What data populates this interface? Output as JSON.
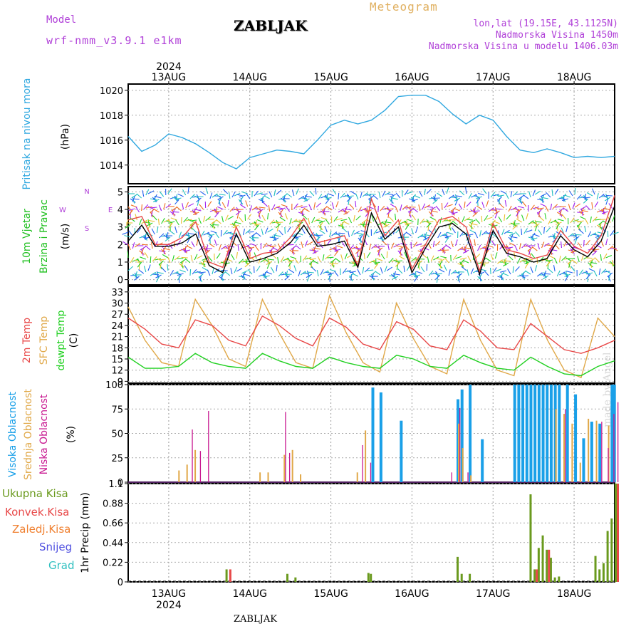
{
  "header": {
    "model_label": "Model",
    "model_name": "wrf-nmm_v3.9.1 e1km",
    "station": "ZABLJAK",
    "chart_kind": "Meteogram",
    "coords": "lon,lat (19.15E, 43.1125N)",
    "altitude": "Nadmorska Visina 1450m",
    "model_altitude": "Nadmorska Visina u modelu 1406.03m",
    "footer_station": "ZABLJAK",
    "watermark": "made by Angel"
  },
  "colors": {
    "pressure": "#30a8e0",
    "temp2m": "#e84848",
    "sfc": "#e0a848",
    "dewpt": "#20d020",
    "high_cloud": "#1aa0e8",
    "mid_cloud": "#e0a848",
    "low_cloud": "#c81890",
    "total_precip": "#6a9a1e",
    "conv_precip": "#e84848",
    "frozen_precip": "#f08030",
    "snow": "#5050e0",
    "grad": "#30c0c0",
    "wind_speed": "#000000",
    "wind_gust": "#e84848"
  },
  "time_axis": {
    "year": "2024",
    "days": [
      "13AUG",
      "14AUG",
      "15AUG",
      "16AUG",
      "17AUG",
      "18AUG"
    ]
  },
  "left_labels": {
    "pressure": [
      "Pritisak na nivou mora",
      "(hPa)"
    ],
    "wind": [
      "10m Vjetar",
      "Brzina i Pravac",
      "(m/s)"
    ],
    "compass": [
      "N",
      "E",
      "W",
      "S"
    ],
    "temp": [
      "2m Temp",
      "SFC Temp",
      "dewpt Temp",
      "(C)"
    ],
    "cloud": [
      "Visoka Oblacnost",
      "Srednja Oblacnost",
      "Niska Oblacnost",
      "(%)"
    ],
    "precip": [
      "Ukupna Kisa",
      "Konvek.Kisa",
      "Zaledj.Kisa",
      "Snijeg",
      "Grad",
      "1hr Precip (mm)"
    ]
  },
  "chart_data": [
    {
      "type": "line",
      "name": "pressure",
      "ylabel": "Pritisak na nivou mora (hPa)",
      "ylim": [
        1012.5,
        1020.5
      ],
      "yticks": [
        1014,
        1016,
        1018,
        1020
      ],
      "x_start_day": 12.5,
      "x_end_day": 18.5,
      "series": [
        {
          "name": "Pritisak na nivou mora",
          "x_step_hours": 6,
          "values": [
            1016.3,
            1015.1,
            1015.6,
            1016.5,
            1016.2,
            1015.7,
            1015.0,
            1014.2,
            1013.7,
            1014.6,
            1014.9,
            1015.2,
            1015.1,
            1014.9,
            1016.0,
            1017.2,
            1017.6,
            1017.3,
            1017.6,
            1018.4,
            1019.5,
            1019.6,
            1019.6,
            1019.1,
            1018.1,
            1017.3,
            1018.0,
            1017.6,
            1016.3,
            1015.2,
            1015.0,
            1015.3,
            1015.0,
            1014.6,
            1014.7,
            1014.6,
            1014.7
          ]
        }
      ]
    },
    {
      "type": "line",
      "name": "wind",
      "ylabel": "10m Vjetar Brzina i Pravac (m/s)",
      "ylim": [
        -0.3,
        5.3
      ],
      "yticks": [
        0,
        1,
        2,
        3,
        4,
        5
      ],
      "series": [
        {
          "name": "speed",
          "x_step_hours": 6,
          "values": [
            2.2,
            3.1,
            1.9,
            1.9,
            2.1,
            2.6,
            0.8,
            0.4,
            2.6,
            1.0,
            1.2,
            1.5,
            2.1,
            3.1,
            1.9,
            2.0,
            2.2,
            0.7,
            3.8,
            2.3,
            3.0,
            0.4,
            1.8,
            3.0,
            3.2,
            2.6,
            0.3,
            2.8,
            1.5,
            1.3,
            1.0,
            1.2,
            2.5,
            1.7,
            1.3,
            2.2,
            4.2
          ]
        },
        {
          "name": "gust",
          "x_step_hours": 6,
          "values": [
            3.4,
            3.6,
            2.0,
            2.0,
            2.4,
            3.3,
            1.0,
            0.7,
            3.0,
            1.2,
            1.5,
            1.6,
            2.4,
            3.5,
            2.1,
            2.3,
            2.5,
            0.8,
            4.6,
            2.5,
            3.4,
            0.6,
            2.0,
            3.4,
            3.6,
            3.0,
            0.5,
            3.2,
            1.7,
            1.5,
            1.2,
            1.4,
            2.8,
            1.9,
            1.5,
            2.5,
            4.8
          ]
        }
      ]
    },
    {
      "type": "line",
      "name": "temperature",
      "ylabel": "Temp (C)",
      "ylim": [
        8.5,
        34.5
      ],
      "yticks": [
        9,
        12,
        15,
        18,
        21,
        24,
        27,
        30,
        33
      ],
      "series": [
        {
          "name": "2m Temp",
          "x_step_hours": 6,
          "values": [
            26.0,
            23.0,
            19.0,
            18.0,
            25.5,
            24.0,
            20.0,
            18.5,
            26.5,
            24.0,
            20.5,
            18.5,
            26.0,
            23.5,
            19.0,
            17.5,
            25.0,
            23.0,
            18.5,
            17.5,
            25.5,
            22.5,
            18.0,
            17.5,
            24.5,
            21.0,
            17.5,
            16.5,
            18.0,
            20.0
          ]
        },
        {
          "name": "SFC Temp",
          "x_step_hours": 6,
          "values": [
            29.0,
            20.0,
            14.0,
            13.0,
            31.0,
            24.0,
            15.0,
            13.0,
            31.0,
            22.0,
            14.0,
            12.5,
            32.0,
            22.0,
            14.0,
            11.5,
            30.0,
            20.5,
            13.0,
            11.0,
            31.0,
            20.0,
            12.0,
            10.5,
            31.0,
            20.0,
            12.0,
            10.0,
            26.0,
            21.0
          ]
        },
        {
          "name": "dewpt Temp",
          "x_step_hours": 6,
          "values": [
            15.5,
            12.5,
            12.5,
            13.0,
            16.5,
            14.0,
            13.0,
            12.5,
            16.5,
            14.5,
            13.0,
            12.5,
            15.5,
            14.0,
            13.0,
            12.5,
            16.0,
            15.0,
            13.0,
            12.5,
            16.0,
            14.0,
            12.5,
            12.0,
            15.5,
            13.0,
            11.0,
            10.5,
            13.0,
            14.5
          ]
        }
      ]
    },
    {
      "type": "bar",
      "name": "cloud",
      "ylabel": "Oblacnost (%)",
      "ylim": [
        0,
        100
      ],
      "yticks": [
        0,
        25,
        50,
        75,
        100
      ],
      "series": [
        {
          "name": "Visoka Oblacnost",
          "bars": [
            [
              15.5,
              97
            ],
            [
              15.6,
              92
            ],
            [
              15.85,
              63
            ],
            [
              16.55,
              85
            ],
            [
              16.6,
              95
            ],
            [
              16.7,
              100
            ],
            [
              16.85,
              44
            ],
            [
              17.25,
              100
            ],
            [
              17.3,
              100
            ],
            [
              17.35,
              100
            ],
            [
              17.4,
              100
            ],
            [
              17.45,
              100
            ],
            [
              17.5,
              100
            ],
            [
              17.55,
              100
            ],
            [
              17.6,
              100
            ],
            [
              17.65,
              100
            ],
            [
              17.7,
              100
            ],
            [
              17.75,
              100
            ],
            [
              17.8,
              100
            ],
            [
              17.9,
              100
            ],
            [
              18.0,
              90
            ],
            [
              18.1,
              45
            ],
            [
              18.2,
              62
            ],
            [
              18.3,
              60
            ],
            [
              18.45,
              100
            ],
            [
              18.48,
              100
            ]
          ]
        },
        {
          "name": "Srednja Oblacnost",
          "bars": [
            [
              13.1,
              12
            ],
            [
              13.2,
              18
            ],
            [
              13.3,
              33
            ],
            [
              14.1,
              10
            ],
            [
              14.2,
              10
            ],
            [
              14.4,
              28
            ],
            [
              14.5,
              33
            ],
            [
              14.6,
              8
            ],
            [
              15.3,
              10
            ],
            [
              15.4,
              53
            ],
            [
              16.55,
              60
            ],
            [
              16.6,
              35
            ],
            [
              16.7,
              7
            ],
            [
              17.75,
              75
            ],
            [
              17.85,
              70
            ],
            [
              17.95,
              60
            ],
            [
              18.05,
              20
            ],
            [
              18.15,
              65
            ],
            [
              18.25,
              63
            ],
            [
              18.4,
              58
            ]
          ]
        },
        {
          "name": "Niska Oblacnost",
          "bars": [
            [
              13.25,
              54
            ],
            [
              13.35,
              32
            ],
            [
              13.45,
              73
            ],
            [
              14.4,
              72
            ],
            [
              14.45,
              30
            ],
            [
              15.35,
              38
            ],
            [
              15.45,
              20
            ],
            [
              16.45,
              10
            ],
            [
              16.55,
              76
            ],
            [
              16.65,
              10
            ],
            [
              17.85,
              75
            ],
            [
              18.3,
              62
            ],
            [
              18.38,
              35
            ],
            [
              18.45,
              70
            ],
            [
              18.5,
              82
            ]
          ]
        }
      ]
    },
    {
      "type": "bar",
      "name": "precipitation",
      "ylabel": "1hr Precip (mm)",
      "ylim": [
        0,
        1.1
      ],
      "yticks": [
        0,
        0.22,
        0.44,
        0.66,
        0.88,
        1.1
      ],
      "series": [
        {
          "name": "Ukupna Kisa",
          "bars": [
            [
              13.7,
              0.14
            ],
            [
              14.45,
              0.09
            ],
            [
              14.55,
              0.05
            ],
            [
              15.45,
              0.1
            ],
            [
              15.48,
              0.09
            ],
            [
              16.55,
              0.28
            ],
            [
              16.6,
              0.09
            ],
            [
              16.7,
              0.09
            ],
            [
              17.45,
              0.98
            ],
            [
              17.5,
              0.14
            ],
            [
              17.55,
              0.38
            ],
            [
              17.6,
              0.52
            ],
            [
              17.65,
              0.36
            ],
            [
              17.7,
              0.27
            ],
            [
              17.75,
              0.05
            ],
            [
              17.8,
              0.06
            ],
            [
              18.25,
              0.29
            ],
            [
              18.3,
              0.14
            ],
            [
              18.35,
              0.21
            ],
            [
              18.4,
              0.57
            ],
            [
              18.45,
              0.71
            ],
            [
              18.5,
              1.1
            ]
          ]
        },
        {
          "name": "Konvek.Kisa",
          "bars": [
            [
              13.72,
              0.14
            ],
            [
              17.5,
              0.14
            ],
            [
              17.65,
              0.36
            ],
            [
              18.5,
              1.1
            ]
          ]
        }
      ]
    }
  ]
}
